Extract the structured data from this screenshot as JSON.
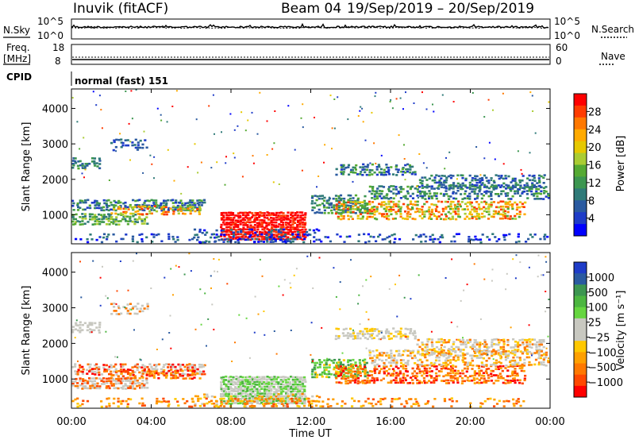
{
  "header": {
    "station": "Inuvik (fitACF)",
    "beam": "Beam 04",
    "date_range": "19/Sep/2019 – 20/Sep/2019"
  },
  "top_panels": {
    "nsky_label": "N.Sky",
    "nsky_ticks": [
      "10^5",
      "10^0"
    ],
    "nsky_right_ticks": [
      "10^5",
      "10^0"
    ],
    "nsearch_label": "N.Search",
    "freq_label": "Freq.",
    "freq_unit": "[MHz]",
    "freq_ticks": [
      "18",
      "8"
    ],
    "nave_ticks": [
      "60",
      "0"
    ],
    "nave_label": "Nave",
    "cpid_label": "CPID",
    "cpid_value": "normal (fast) 151"
  },
  "power_colorbar": {
    "label": "Power [dB]",
    "ticks": [
      "28",
      "24",
      "20",
      "16",
      "12",
      "8",
      "4"
    ],
    "colors": [
      "#ff0000",
      "#ff3c00",
      "#ff7800",
      "#ffaa00",
      "#e6c800",
      "#aacc33",
      "#55aa33",
      "#3c9650",
      "#2f7a78",
      "#2a5aa0",
      "#1e3cc8",
      "#0000ff"
    ]
  },
  "velocity_colorbar": {
    "label": "Velocity [m s⁻¹]",
    "ticks": [
      "1000",
      "500",
      "100",
      "25",
      "−25",
      "−100",
      "−500",
      "−1000"
    ],
    "colors": [
      "#1e3cc8",
      "#2a5aa0",
      "#3c9650",
      "#4cb640",
      "#66d640",
      "#c8c8c0",
      "#c8c8c0",
      "#ffc800",
      "#ffa000",
      "#ff7800",
      "#ff4800",
      "#ff0000"
    ]
  },
  "chart_data": [
    {
      "type": "heatmap",
      "panel": "power",
      "ylabel": "Slant Range [km]",
      "ylim": [
        180,
        4550
      ],
      "yticks": [
        "4000",
        "3000",
        "2000",
        "1000"
      ],
      "xlim_hours": [
        0,
        24
      ],
      "zlabel": "Power [dB]",
      "zlim": [
        0,
        32
      ]
    },
    {
      "type": "heatmap",
      "panel": "velocity",
      "ylabel": "Slant Range [km]",
      "ylim": [
        180,
        4550
      ],
      "yticks": [
        "4000",
        "3000",
        "2000",
        "1000"
      ],
      "xlim_hours": [
        0,
        24
      ],
      "zlabel": "Velocity [m s⁻¹]"
    }
  ],
  "x_axis": {
    "ticks": [
      "00:00",
      "04:00",
      "08:00",
      "12:00",
      "16:00",
      "20:00",
      "00:00"
    ],
    "label": "Time UT"
  }
}
